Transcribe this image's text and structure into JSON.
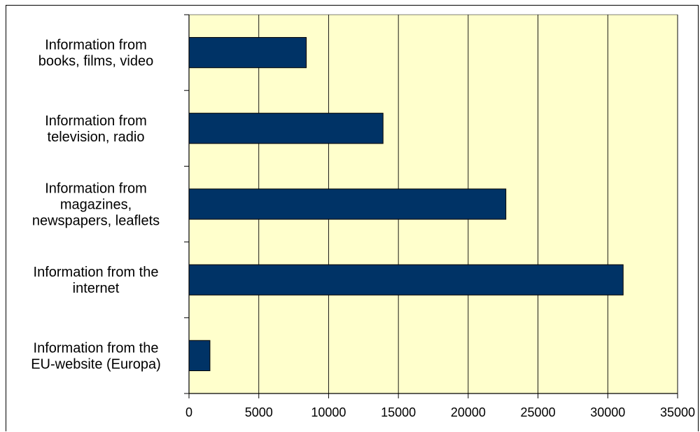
{
  "chart_data": {
    "type": "bar",
    "orientation": "horizontal",
    "categories": [
      [
        "Information from",
        "books, films, video"
      ],
      [
        "Information from",
        "television, radio"
      ],
      [
        "Information from",
        "magazines,",
        "newspapers, leaflets"
      ],
      [
        "Information from the",
        "internet"
      ],
      [
        "Information from the",
        "EU-website (Europa)"
      ]
    ],
    "values": [
      8400,
      13900,
      22700,
      31100,
      1500
    ],
    "title": "",
    "xlabel": "",
    "ylabel": "",
    "xlim": [
      0,
      35000
    ],
    "x_ticks": [
      "0",
      "5000",
      "10000",
      "15000",
      "20000",
      "25000",
      "30000",
      "35000"
    ],
    "grid": "vertical",
    "legend": "none",
    "colors": {
      "bar": "#003366",
      "plot_background": "#FFFFCC",
      "gridline": "#000000"
    }
  }
}
